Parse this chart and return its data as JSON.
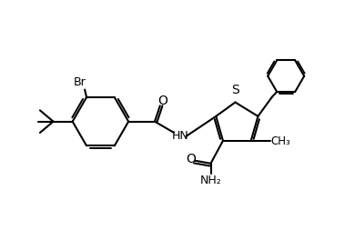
{
  "background_color": "#ffffff",
  "line_color": "#000000",
  "line_width": 1.5,
  "font_size": 9,
  "fig_width": 3.9,
  "fig_height": 2.75,
  "dpi": 100,
  "xlim": [
    0,
    10
  ],
  "ylim": [
    0,
    7
  ]
}
